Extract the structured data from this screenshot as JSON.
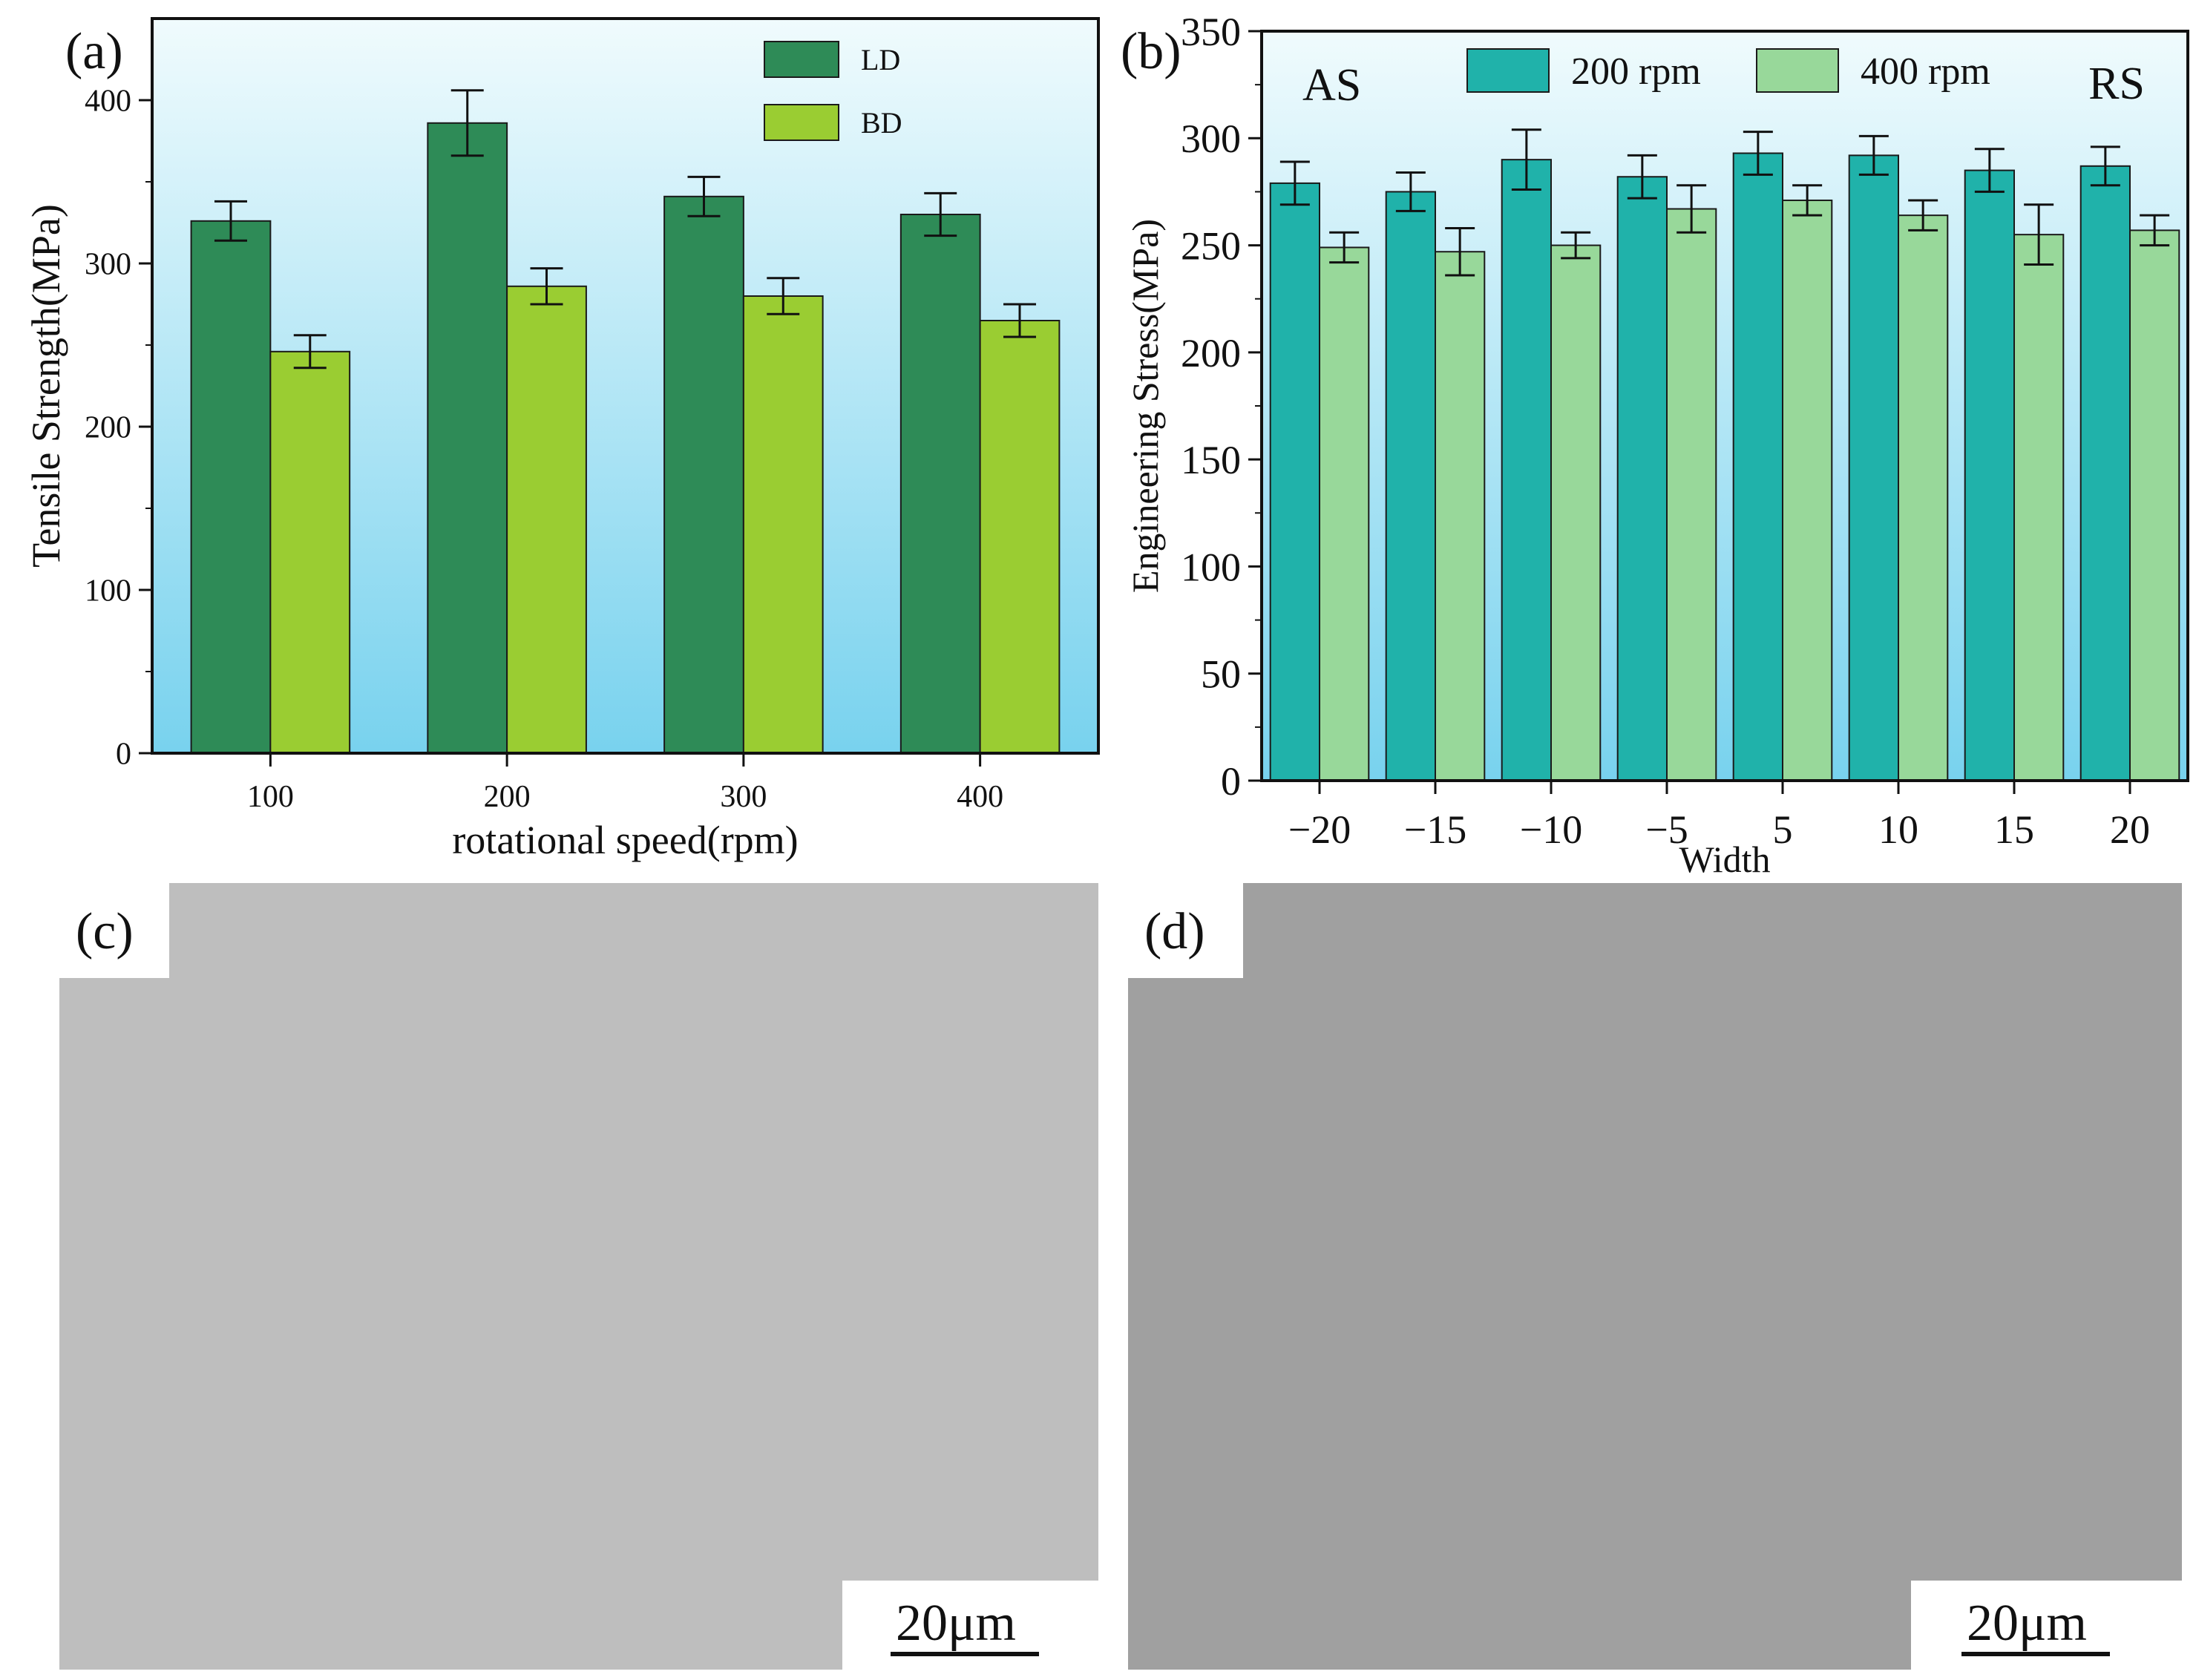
{
  "panels": {
    "a": {
      "label": "(a)"
    },
    "b": {
      "label": "(b)"
    },
    "c": {
      "label": "(c)",
      "scale_bar": "20μm"
    },
    "d": {
      "label": "(d)",
      "scale_bar": "20μm"
    }
  },
  "chart_data": [
    {
      "panel": "a",
      "type": "bar",
      "xlabel": "rotational speed(rpm)",
      "ylabel": "Tensile Strength(MPa)",
      "categories": [
        "100",
        "200",
        "300",
        "400"
      ],
      "ylim": [
        0,
        450
      ],
      "yticks": [
        0,
        100,
        200,
        300,
        400
      ],
      "legend_position": "top-center",
      "series": [
        {
          "name": "LD",
          "color": "#2e8b57",
          "values": [
            326,
            386,
            341,
            330
          ],
          "errors": [
            12,
            20,
            12,
            13
          ]
        },
        {
          "name": "BD",
          "color": "#9acd32",
          "values": [
            246,
            286,
            280,
            265
          ],
          "errors": [
            10,
            11,
            11,
            10
          ]
        }
      ],
      "background_gradient": [
        "#eaf8fb",
        "#7fd6f0"
      ]
    },
    {
      "panel": "b",
      "type": "bar",
      "xlabel": "Width",
      "ylabel": "Engineering Stress(MPa)",
      "categories": [
        "−20",
        "−15",
        "−10",
        "−5",
        "5",
        "10",
        "15",
        "20"
      ],
      "ylim": [
        0,
        350
      ],
      "yticks": [
        0,
        50,
        100,
        150,
        200,
        250,
        300,
        350
      ],
      "legend_position": "top-center",
      "annotations": [
        "AS",
        "RS"
      ],
      "series": [
        {
          "name": "200 rpm",
          "color": "#20b2aa",
          "values": [
            279,
            275,
            290,
            282,
            293,
            292,
            285,
            287
          ],
          "errors": [
            10,
            9,
            14,
            10,
            10,
            9,
            10,
            9
          ]
        },
        {
          "name": "400 rpm",
          "color": "#98d89a",
          "values": [
            249,
            247,
            250,
            267,
            271,
            264,
            255,
            257
          ],
          "errors": [
            7,
            11,
            6,
            11,
            7,
            7,
            14,
            7
          ]
        }
      ],
      "background_gradient": [
        "#eaf8fb",
        "#7fd6f0"
      ]
    }
  ]
}
